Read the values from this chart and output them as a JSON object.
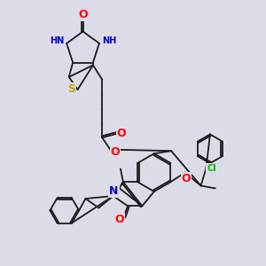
{
  "bg_color": "#dcdce8",
  "bond_color": "#1a1a1a",
  "atom_colors": {
    "O": "#ff0000",
    "N": "#0000bb",
    "S": "#bbaa00",
    "Cl": "#00bb00",
    "H": "#007777",
    "C": "#1a1a1a"
  },
  "bond_lw": 1.3,
  "font_size": 8
}
